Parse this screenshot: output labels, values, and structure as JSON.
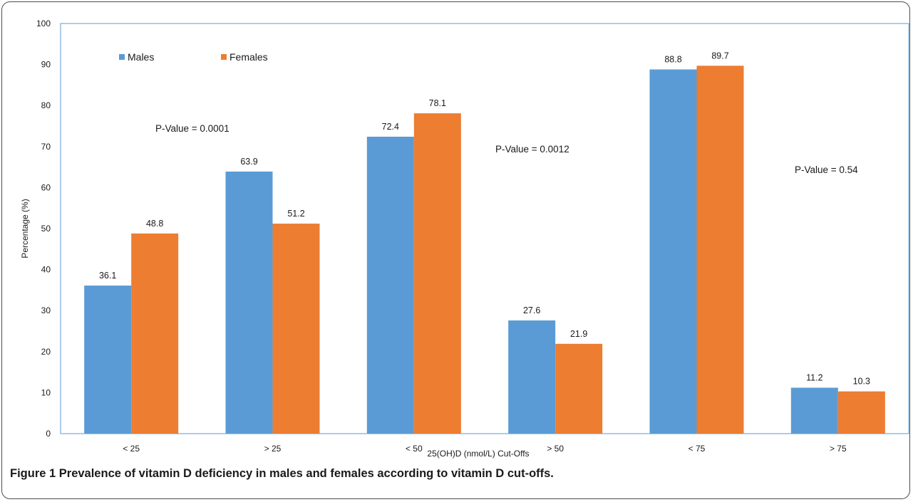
{
  "chart_data": {
    "type": "bar",
    "categories": [
      "< 25",
      "> 25",
      "< 50",
      "> 50",
      "< 75",
      "> 75"
    ],
    "series": [
      {
        "name": "Males",
        "color": "#5b9bd5",
        "values": [
          36.1,
          63.9,
          72.4,
          27.6,
          88.8,
          11.2
        ]
      },
      {
        "name": "Females",
        "color": "#ed7d31",
        "values": [
          48.8,
          51.2,
          78.1,
          21.9,
          89.7,
          10.3
        ]
      }
    ],
    "xlabel": "25(OH)D (nmol/L) Cut-Offs",
    "ylabel": "Percentage (%)",
    "ylim": [
      0,
      100
    ],
    "yticks": [
      0,
      10,
      20,
      30,
      40,
      50,
      60,
      70,
      80,
      90,
      100
    ],
    "grid": false,
    "legend_position": "top-left",
    "annotations": [
      {
        "text": "P-Value = 0.0001"
      },
      {
        "text": "P-Value = 0.0012"
      },
      {
        "text": "P-Value = 0.54"
      }
    ]
  },
  "caption": {
    "label": "Figure 1",
    "text": " Prevalence of vitamin D deficiency in males and females according to vitamin D cut-offs."
  }
}
